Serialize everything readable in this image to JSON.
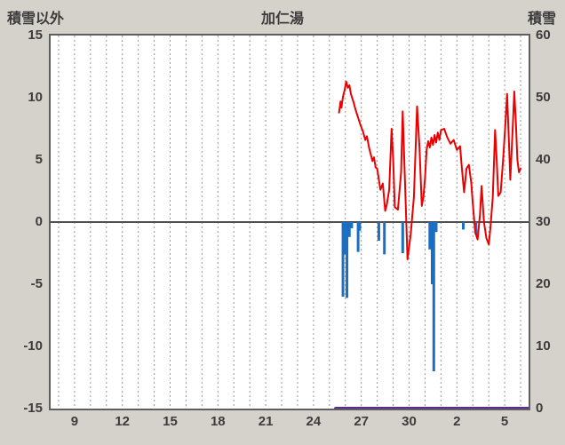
{
  "chart_data": {
    "type": "line",
    "title": "加仁湯",
    "left_axis": {
      "label": "積雪以外",
      "min": -15,
      "max": 15,
      "ticks": [
        15,
        10,
        5,
        0,
        -5,
        -10,
        -15
      ]
    },
    "right_axis": {
      "label": "積雪",
      "min": 0,
      "max": 60,
      "ticks": [
        60,
        50,
        40,
        30,
        20,
        10,
        0
      ]
    },
    "x_axis": {
      "min": 7.5,
      "max": 37.5,
      "gridline_step": 1,
      "tick_positions": [
        9,
        12,
        15,
        18,
        21,
        24,
        27,
        30,
        33,
        36
      ],
      "tick_labels": [
        "9",
        "12",
        "15",
        "18",
        "21",
        "24",
        "27",
        "30",
        "2",
        "5"
      ]
    },
    "grid": {
      "vertical_dashed": true,
      "color": "#969696"
    },
    "zero_line": {
      "value": 0,
      "color": "#4f4f4f"
    },
    "series": [
      {
        "name": "snow-depth",
        "type": "line",
        "axis": "right",
        "color": "#5c2d91",
        "width": 4,
        "points": [
          [
            25.4,
            0
          ],
          [
            37.5,
            0
          ]
        ]
      },
      {
        "name": "precipitation",
        "type": "bar",
        "axis": "left",
        "color": "#1b6ec2",
        "width": 3,
        "points": [
          [
            25.85,
            -6.0
          ],
          [
            25.95,
            -2.6
          ],
          [
            26.1,
            -6.1
          ],
          [
            26.25,
            -1.2
          ],
          [
            26.4,
            -0.5
          ],
          [
            26.8,
            -2.4
          ],
          [
            26.9,
            -0.7
          ],
          [
            28.1,
            -1.5
          ],
          [
            28.45,
            -2.6
          ],
          [
            29.6,
            -2.5
          ],
          [
            31.3,
            -2.2
          ],
          [
            31.45,
            -5.0
          ],
          [
            31.55,
            -12.0
          ],
          [
            31.7,
            -0.8
          ],
          [
            33.4,
            -0.6
          ],
          [
            34.2,
            -1.0
          ]
        ]
      },
      {
        "name": "temperature",
        "type": "line",
        "axis": "left",
        "color": "#ea0000",
        "width": 2,
        "points": [
          [
            25.6,
            8.8
          ],
          [
            25.7,
            9.7
          ],
          [
            25.75,
            9.2
          ],
          [
            25.85,
            10.1
          ],
          [
            25.95,
            10.6
          ],
          [
            26.05,
            11.3
          ],
          [
            26.15,
            10.8
          ],
          [
            26.25,
            11.0
          ],
          [
            26.35,
            10.3
          ],
          [
            26.5,
            9.7
          ],
          [
            26.65,
            9.0
          ],
          [
            26.8,
            8.4
          ],
          [
            26.95,
            7.8
          ],
          [
            27.1,
            7.3
          ],
          [
            27.25,
            6.6
          ],
          [
            27.35,
            6.9
          ],
          [
            27.5,
            5.9
          ],
          [
            27.6,
            5.4
          ],
          [
            27.7,
            4.9
          ],
          [
            27.8,
            5.2
          ],
          [
            27.9,
            4.4
          ],
          [
            28.0,
            4.3
          ],
          [
            28.2,
            2.6
          ],
          [
            28.35,
            3.1
          ],
          [
            28.5,
            0.9
          ],
          [
            28.6,
            1.4
          ],
          [
            28.75,
            2.6
          ],
          [
            28.9,
            7.5
          ],
          [
            29.0,
            5.0
          ],
          [
            29.1,
            1.2
          ],
          [
            29.3,
            1.0
          ],
          [
            29.5,
            4.0
          ],
          [
            29.6,
            8.9
          ],
          [
            29.75,
            3.0
          ],
          [
            29.9,
            -3.0
          ],
          [
            30.1,
            -1.0
          ],
          [
            30.3,
            2.0
          ],
          [
            30.5,
            9.3
          ],
          [
            30.65,
            6.0
          ],
          [
            30.8,
            1.3
          ],
          [
            30.9,
            2.0
          ],
          [
            31.0,
            3.5
          ],
          [
            31.1,
            5.8
          ],
          [
            31.2,
            6.5
          ],
          [
            31.3,
            6.0
          ],
          [
            31.4,
            6.8
          ],
          [
            31.5,
            6.2
          ],
          [
            31.6,
            7.0
          ],
          [
            31.7,
            6.4
          ],
          [
            31.8,
            7.2
          ],
          [
            31.9,
            6.6
          ],
          [
            32.0,
            7.4
          ],
          [
            32.2,
            7.5
          ],
          [
            32.4,
            6.8
          ],
          [
            32.6,
            6.3
          ],
          [
            32.8,
            6.6
          ],
          [
            33.0,
            5.8
          ],
          [
            33.2,
            6.1
          ],
          [
            33.3,
            4.5
          ],
          [
            33.45,
            2.4
          ],
          [
            33.6,
            4.3
          ],
          [
            33.75,
            4.6
          ],
          [
            33.9,
            3.2
          ],
          [
            34.0,
            1.5
          ],
          [
            34.15,
            -0.8
          ],
          [
            34.3,
            -1.4
          ],
          [
            34.45,
            0.6
          ],
          [
            34.55,
            2.9
          ],
          [
            34.7,
            0.0
          ],
          [
            34.85,
            -1.3
          ],
          [
            35.0,
            -1.8
          ],
          [
            35.1,
            -0.5
          ],
          [
            35.25,
            2.0
          ],
          [
            35.4,
            7.4
          ],
          [
            35.5,
            5.0
          ],
          [
            35.6,
            2.1
          ],
          [
            35.75,
            2.4
          ],
          [
            35.9,
            5.0
          ],
          [
            36.05,
            8.0
          ],
          [
            36.15,
            10.3
          ],
          [
            36.25,
            7.0
          ],
          [
            36.35,
            3.4
          ],
          [
            36.5,
            7.5
          ],
          [
            36.6,
            10.5
          ],
          [
            36.7,
            8.0
          ],
          [
            36.8,
            5.0
          ],
          [
            36.9,
            4.0
          ],
          [
            37.0,
            4.3
          ]
        ]
      }
    ]
  },
  "colors": {
    "background": "#d5d2cb",
    "plot_background": "#ffffff",
    "border": "#5f5f5f",
    "text": "#3c3c3c"
  }
}
